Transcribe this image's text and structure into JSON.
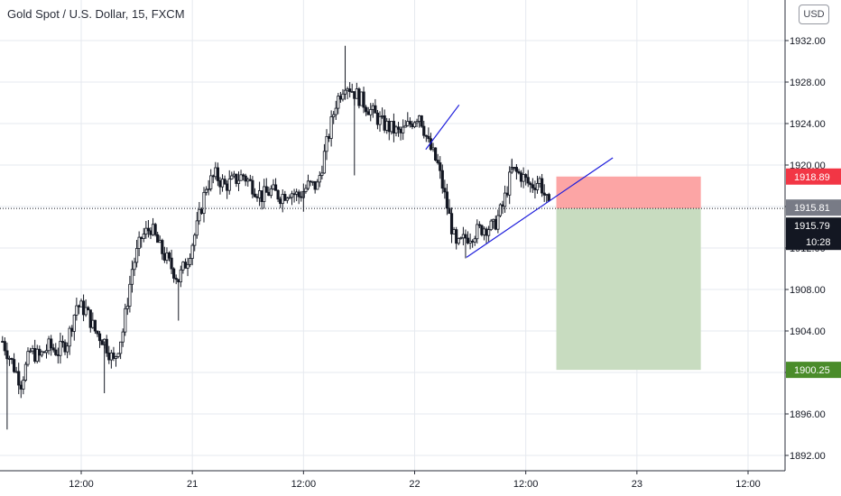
{
  "header": {
    "title": "Gold Spot / U.S. Dollar, 15, FXCM",
    "currency": "USD"
  },
  "price_scale": {
    "ticks": [
      {
        "label": "1932.00",
        "value": 1932
      },
      {
        "label": "1928.00",
        "value": 1928
      },
      {
        "label": "1924.00",
        "value": 1924
      },
      {
        "label": "1920.00",
        "value": 1920
      },
      {
        "label": "1916.00",
        "value": 1916
      },
      {
        "label": "1912.00",
        "value": 1912
      },
      {
        "label": "1908.00",
        "value": 1908
      },
      {
        "label": "1904.00",
        "value": 1904
      },
      {
        "label": "1900.00",
        "value": 1900
      },
      {
        "label": "1896.00",
        "value": 1896
      },
      {
        "label": "1892.00",
        "value": 1892
      }
    ]
  },
  "time_scale": {
    "ticks": [
      {
        "label": "12:00",
        "t": 0
      },
      {
        "label": "21",
        "t": 12
      },
      {
        "label": "12:00",
        "t": 24
      },
      {
        "label": "22",
        "t": 36
      },
      {
        "label": "12:00",
        "t": 48
      },
      {
        "label": "23",
        "t": 60
      },
      {
        "label": "12:00",
        "t": 72
      }
    ]
  },
  "tags": {
    "stop_loss": {
      "label": "1918.89",
      "value": 1918.89,
      "color": "#f23645"
    },
    "entry": {
      "label": "1915.81",
      "value": 1915.81,
      "color": "#787b86"
    },
    "last_price": {
      "label": "1915.79",
      "value": 1915.79,
      "color": "#131722"
    },
    "countdown": {
      "label": "10:28"
    },
    "take_profit": {
      "label": "1900.25",
      "value": 1900.25,
      "color": "#4a8c2a"
    }
  },
  "chart_data": {
    "type": "candlestick",
    "symbol": "Gold Spot / U.S. Dollar",
    "interval": "15",
    "source": "FXCM",
    "ylim": [
      1891,
      1935.5
    ],
    "grid": true,
    "close_path": [
      [
        -8.5,
        1903
      ],
      [
        -7.5,
        1901
      ],
      [
        -6.5,
        1899
      ],
      [
        -5.5,
        1902
      ],
      [
        -4.5,
        1901.5
      ],
      [
        -3.5,
        1902.5
      ],
      [
        -2.5,
        1902
      ],
      [
        -1.5,
        1903
      ],
      [
        -0.5,
        1906.5
      ],
      [
        0.5,
        1906
      ],
      [
        1.5,
        1904
      ],
      [
        2.5,
        1903
      ],
      [
        3.5,
        1901
      ],
      [
        4.5,
        1904
      ],
      [
        5.5,
        1910
      ],
      [
        6.5,
        1913
      ],
      [
        7.5,
        1914
      ],
      [
        8.5,
        1912
      ],
      [
        9.5,
        1910.5
      ],
      [
        10.5,
        1909
      ],
      [
        11.5,
        1911
      ],
      [
        12.5,
        1914
      ],
      [
        13.5,
        1918
      ],
      [
        14.5,
        1919
      ],
      [
        15.5,
        1918
      ],
      [
        16.5,
        1918.5
      ],
      [
        17.5,
        1919
      ],
      [
        18.5,
        1918
      ],
      [
        19.5,
        1917
      ],
      [
        20.5,
        1917.5
      ],
      [
        21.5,
        1917
      ],
      [
        22.5,
        1917.5
      ],
      [
        23.5,
        1917
      ],
      [
        24.5,
        1918
      ],
      [
        25.5,
        1918
      ],
      [
        26.5,
        1922
      ],
      [
        27.5,
        1926
      ],
      [
        28.5,
        1928
      ],
      [
        29.5,
        1927
      ],
      [
        30.5,
        1926
      ],
      [
        31.5,
        1925
      ],
      [
        32.5,
        1924
      ],
      [
        33.5,
        1923.5
      ],
      [
        34.5,
        1923
      ],
      [
        35.5,
        1924
      ],
      [
        36.5,
        1925
      ],
      [
        37.5,
        1922
      ],
      [
        38.5,
        1920
      ],
      [
        39.5,
        1916
      ],
      [
        40.5,
        1912
      ],
      [
        41.5,
        1913
      ],
      [
        42.5,
        1913.5
      ],
      [
        43.5,
        1914
      ],
      [
        44.5,
        1914
      ],
      [
        45.5,
        1916
      ],
      [
        46.5,
        1919.5
      ],
      [
        47.5,
        1919
      ],
      [
        48.5,
        1918
      ],
      [
        49.5,
        1918.5
      ],
      [
        50.5,
        1915.8
      ]
    ],
    "wicks": [
      {
        "t": -8.0,
        "low": 1894.5
      },
      {
        "t": 2.5,
        "low": 1898
      },
      {
        "t": 10.5,
        "low": 1905
      },
      {
        "t": 28.5,
        "high": 1931.5
      },
      {
        "t": 29.5,
        "low": 1919
      },
      {
        "t": 24.0,
        "low": 1915.5
      },
      {
        "t": 41.5,
        "low": 1911
      },
      {
        "t": 46.5,
        "high": 1920.5
      }
    ],
    "trendlines": [
      {
        "from": {
          "t": 37.2,
          "price": 1921.5
        },
        "to": {
          "t": 40.8,
          "price": 1925.8
        },
        "color": "#1e1edc"
      },
      {
        "from": {
          "t": 41.6,
          "price": 1911.1
        },
        "to": {
          "t": 57.4,
          "price": 1920.7
        },
        "color": "#1e1edc"
      }
    ],
    "short_position": {
      "t_start": 51.3,
      "t_end": 66.9,
      "entry": 1915.81,
      "stop": 1918.89,
      "target": 1900.25,
      "risk_color": "#fca5a5",
      "reward_color": "#c8dcc0"
    }
  }
}
